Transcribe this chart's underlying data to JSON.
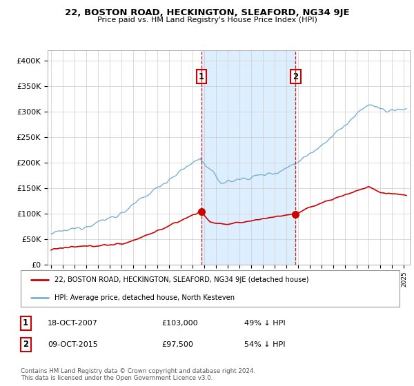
{
  "title": "22, BOSTON ROAD, HECKINGTON, SLEAFORD, NG34 9JE",
  "subtitle": "Price paid vs. HM Land Registry's House Price Index (HPI)",
  "legend_label_red": "22, BOSTON ROAD, HECKINGTON, SLEAFORD, NG34 9JE (detached house)",
  "legend_label_blue": "HPI: Average price, detached house, North Kesteven",
  "annotation1": {
    "num": "1",
    "date": "18-OCT-2007",
    "price": "£103,000",
    "pct": "49% ↓ HPI",
    "x_year": 2007.79
  },
  "annotation2": {
    "num": "2",
    "date": "09-OCT-2015",
    "price": "£97,500",
    "pct": "54% ↓ HPI",
    "x_year": 2015.77
  },
  "footer": "Contains HM Land Registry data © Crown copyright and database right 2024.\nThis data is licensed under the Open Government Licence v3.0.",
  "red_color": "#cc0000",
  "blue_color": "#7ab0d4",
  "shade_color": "#ddeeff",
  "dashed_color": "#cc0000",
  "ylim": [
    0,
    420000
  ],
  "yticks": [
    0,
    50000,
    100000,
    150000,
    200000,
    250000,
    300000,
    350000,
    400000
  ],
  "background_color": "#ffffff",
  "plot_bg_color": "#ffffff",
  "grid_color": "#cccccc",
  "xlim_left": 1994.7,
  "xlim_right": 2025.5
}
